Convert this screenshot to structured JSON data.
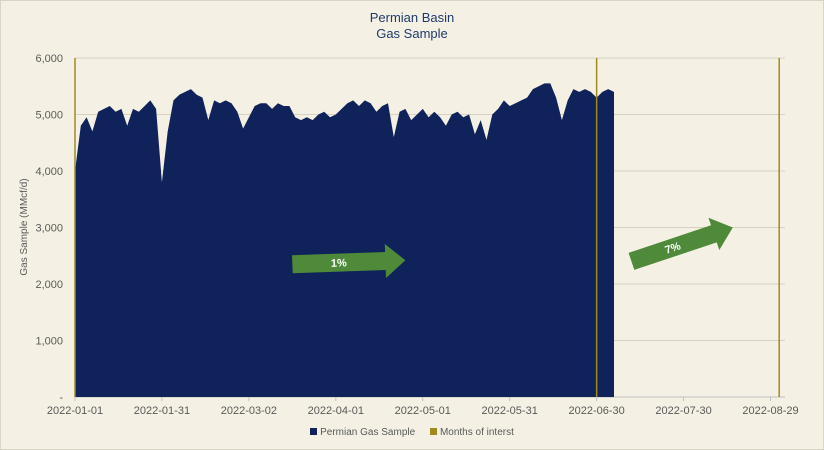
{
  "chart_data": {
    "type": "area",
    "title": "Permian Basin",
    "subtitle": "Gas Sample",
    "ylabel": "Gas Sample (MMcf/d)",
    "xlabel": "",
    "ylim": [
      0,
      6000
    ],
    "y_ticks": [
      "-",
      "1,000",
      "2,000",
      "3,000",
      "4,000",
      "5,000",
      "6,000"
    ],
    "y_tick_values": [
      0,
      1000,
      2000,
      3000,
      4000,
      5000,
      6000
    ],
    "x_ticks": [
      "2022-01-01",
      "2022-01-31",
      "2022-03-02",
      "2022-04-01",
      "2022-05-01",
      "2022-05-31",
      "2022-06-30",
      "2022-07-30",
      "2022-08-29"
    ],
    "grid": true,
    "legend_position": "bottom",
    "colors": {
      "series": "#0f2259",
      "marker": "#a08a1f",
      "arrow": "#4e8a3a"
    },
    "series": [
      {
        "name": "Permian Gas Sample",
        "start_date": "2022-01-01",
        "step_days": 2,
        "values": [
          4000,
          4800,
          4950,
          4700,
          5050,
          5100,
          5150,
          5050,
          5100,
          4800,
          5100,
          5050,
          5150,
          5250,
          5100,
          3800,
          4700,
          5250,
          5350,
          5400,
          5450,
          5350,
          5300,
          4900,
          5250,
          5200,
          5250,
          5200,
          5050,
          4750,
          4950,
          5150,
          5200,
          5200,
          5100,
          5200,
          5150,
          5150,
          4950,
          4900,
          4950,
          4900,
          5000,
          5050,
          4950,
          5000,
          5100,
          5200,
          5250,
          5150,
          5250,
          5200,
          5050,
          5150,
          5200,
          4600,
          5050,
          5100,
          4900,
          5000,
          5100,
          4950,
          5050,
          4950,
          4800,
          5000,
          5050,
          4950,
          5000,
          4650,
          4900,
          4550,
          5000,
          5100,
          5250,
          5150,
          5200,
          5250,
          5300,
          5450,
          5500,
          5550,
          5550,
          5300,
          4900,
          5250,
          5450,
          5400,
          5450,
          5400,
          5300,
          5400,
          5450,
          5400
        ]
      }
    ],
    "markers": {
      "name": "Months of interst",
      "dates": [
        "2022-01-01",
        "2022-06-30",
        "2022-09-01"
      ]
    },
    "annotations": [
      {
        "text": "1%",
        "start_date": "2022-03-17",
        "start_value": 2350,
        "end_date": "2022-04-25",
        "end_value": 2420
      },
      {
        "text": "7%",
        "start_date": "2022-07-12",
        "start_value": 2400,
        "end_date": "2022-08-16",
        "end_value": 3000
      }
    ]
  }
}
